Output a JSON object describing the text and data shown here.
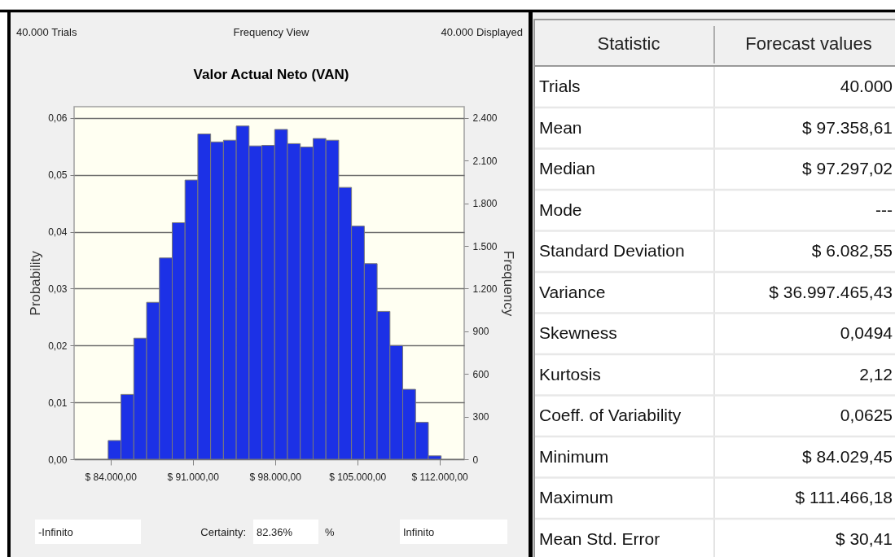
{
  "chart_data": [
    {
      "type": "histogram",
      "title": "Valor Actual Neto (VAN)",
      "ylabel": "Probability",
      "y2label": "Frequency",
      "bins": [
        83800,
        84890,
        85980,
        87070,
        88160,
        89250,
        90340,
        91430,
        92520,
        93610,
        94700,
        95790,
        96880,
        97970,
        99060,
        100150,
        101240,
        102330,
        103420,
        104510,
        105600,
        106690,
        107780,
        108870,
        109960,
        111050,
        112140
      ],
      "values": [
        0.0033,
        0.0114,
        0.0213,
        0.0276,
        0.0354,
        0.0416,
        0.0491,
        0.0572,
        0.0558,
        0.0561,
        0.0586,
        0.0551,
        0.0552,
        0.058,
        0.0555,
        0.0549,
        0.0564,
        0.0561,
        0.0478,
        0.041,
        0.0344,
        0.026,
        0.02,
        0.0123,
        0.0065,
        0.0006
      ],
      "color": "#1c31e6",
      "xlim": [
        80900,
        114100
      ],
      "xticks": [
        {
          "value": 84000,
          "label": "$ 84.000,00"
        },
        {
          "value": 91000,
          "label": "$ 91.000,00"
        },
        {
          "value": 98000,
          "label": "$ 98.000,00"
        },
        {
          "value": 105000,
          "label": "$ 105.000,00"
        },
        {
          "value": 112000,
          "label": "$ 112.000,00"
        }
      ],
      "ylim": [
        0,
        0.062
      ],
      "yticks": [
        {
          "value": 0,
          "label": "0,00"
        },
        {
          "value": 0.01,
          "label": "0,01"
        },
        {
          "value": 0.02,
          "label": "0,02"
        },
        {
          "value": 0.03,
          "label": "0,03"
        },
        {
          "value": 0.04,
          "label": "0,04"
        },
        {
          "value": 0.05,
          "label": "0,05"
        },
        {
          "value": 0.06,
          "label": "0,06"
        }
      ],
      "y2lim": [
        0,
        2480
      ],
      "y2ticks": [
        0,
        300,
        600,
        900,
        {
          "value": 1200,
          "label": "1.200"
        },
        {
          "value": 1500,
          "label": "1.500"
        },
        {
          "value": 1800,
          "label": "1.800"
        },
        {
          "value": 2100,
          "label": "2.100"
        },
        {
          "value": 2400,
          "label": "2.400"
        }
      ],
      "grid": "y",
      "annotations": [
        "40.000 Trials",
        "Frequency View",
        "40.000 Displayed",
        "-Infinito",
        "Certainty:",
        "82.36%",
        "%",
        "Infinito"
      ]
    },
    {
      "type": "other",
      "annotations": [
        "Statistic",
        "Forecast values",
        "Trials",
        "40.000",
        "Mean",
        "$ 97.358,61",
        "Median",
        "$ 97.297,02",
        "Mode",
        "---",
        "Standard Deviation",
        "$ 6.082,55",
        "Variance",
        "$ 36.997.465,43",
        "Skewness",
        "0,0494",
        "Kurtosis",
        "2,12",
        "Coeff. of Variability",
        "0,0625",
        "Minimum",
        "$ 84.029,45",
        "Maximum",
        "$ 111.466,18",
        "Mean Std. Error",
        "$ 30,41"
      ]
    }
  ]
}
